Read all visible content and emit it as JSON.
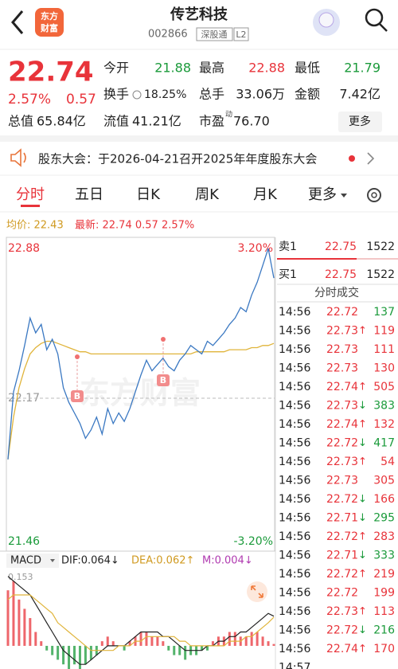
{
  "header": {
    "logo": [
      "东方",
      "财富"
    ],
    "title": "传艺科技",
    "code": "002866",
    "tags": [
      "深股通",
      "L2"
    ]
  },
  "quote": {
    "price": "22.74",
    "change_pct": "2.57%",
    "change": "0.57",
    "stats": [
      [
        {
          "label": "今开",
          "value": "21.88",
          "color": "#1a9a3a"
        },
        {
          "label": "最高",
          "value": "22.88",
          "color": "#e8333a"
        },
        {
          "label": "最低",
          "value": "21.79",
          "color": "#1a9a3a"
        }
      ],
      [
        {
          "label": "换手",
          "value": "18.25%"
        },
        {
          "label": "总手",
          "value": "33.06万"
        },
        {
          "label": "金额",
          "value": "7.42亿"
        }
      ],
      [
        {
          "label": "总值",
          "value": "65.84亿"
        },
        {
          "label": "流值",
          "value": "41.21亿"
        },
        {
          "label": "市盈",
          "sup": "动",
          "value": "76.70"
        }
      ]
    ],
    "more": "更多"
  },
  "notice": {
    "text": "股东大会：于2026-04-21召开2025年年度股东大会"
  },
  "tabs": [
    "分时",
    "五日",
    "日K",
    "周K",
    "月K",
    "更多"
  ],
  "legend": {
    "avg": "均价: 22.43",
    "latest": "最新: 22.74 0.57 2.57%"
  },
  "watermark": "东方财富",
  "trade_marks": [
    "B",
    "B"
  ],
  "order_book": {
    "ask": {
      "label": "卖1",
      "price": "22.75",
      "volume": "1522"
    },
    "bid": {
      "label": "买1",
      "price": "22.75",
      "volume": "1522"
    }
  },
  "trades": {
    "title": "分时成交",
    "rows": [
      {
        "time": "14:56",
        "price": "22.72",
        "volume": "137",
        "color": "#1a9a3a"
      },
      {
        "time": "14:56",
        "price": "22.73",
        "arrow": "↑",
        "volume": "119",
        "color": "#e8333a"
      },
      {
        "time": "14:56",
        "price": "22.73",
        "volume": "111",
        "color": "#e8333a"
      },
      {
        "time": "14:56",
        "price": "22.73",
        "volume": "130",
        "color": "#e8333a"
      },
      {
        "time": "14:56",
        "price": "22.74",
        "arrow": "↑",
        "volume": "505",
        "color": "#e8333a"
      },
      {
        "time": "14:56",
        "price": "22.73",
        "arrow": "↓",
        "volume": "383",
        "color": "#1a9a3a"
      },
      {
        "time": "14:56",
        "price": "22.74",
        "arrow": "↑",
        "volume": "132",
        "color": "#e8333a"
      },
      {
        "time": "14:56",
        "price": "22.72",
        "arrow": "↓",
        "volume": "417",
        "color": "#1a9a3a"
      },
      {
        "time": "14:56",
        "price": "22.73",
        "arrow": "↑",
        "volume": "54",
        "color": "#e8333a"
      },
      {
        "time": "14:56",
        "price": "22.73",
        "volume": "305",
        "color": "#e8333a"
      },
      {
        "time": "14:56",
        "price": "22.72",
        "arrow": "↓",
        "volume": "166",
        "color": "#e8333a"
      },
      {
        "time": "14:56",
        "price": "22.71",
        "arrow": "↓",
        "volume": "295",
        "color": "#1a9a3a"
      },
      {
        "time": "14:56",
        "price": "22.72",
        "arrow": "↑",
        "volume": "283",
        "color": "#e8333a"
      },
      {
        "time": "14:56",
        "price": "22.71",
        "arrow": "↓",
        "volume": "333",
        "color": "#1a9a3a"
      },
      {
        "time": "14:56",
        "price": "22.72",
        "arrow": "↑",
        "volume": "219",
        "color": "#e8333a"
      },
      {
        "time": "14:56",
        "price": "22.72",
        "volume": "199",
        "color": "#e8333a"
      },
      {
        "time": "14:56",
        "price": "22.73",
        "arrow": "↑",
        "volume": "113",
        "color": "#e8333a"
      },
      {
        "time": "14:56",
        "price": "22.72",
        "arrow": "↓",
        "volume": "216",
        "color": "#1a9a3a"
      },
      {
        "time": "14:56",
        "price": "22.74",
        "arrow": "↑",
        "volume": "170",
        "color": "#e8333a"
      },
      {
        "time": "14:57"
      }
    ]
  },
  "chart_data": [
    {
      "type": "line",
      "ylim": [
        21.46,
        22.88
      ],
      "yticks": [
        21.46,
        22.17,
        22.88
      ],
      "y2lim": [
        -3.2,
        3.2
      ],
      "y2ticks": [
        {
          "value": -3.2,
          "label": "-3.20%"
        },
        {
          "value": 3.2,
          "label": "3.20%"
        }
      ],
      "series": [
        {
          "color": "#3a78c2",
          "values": [
            21.88,
            22.2,
            22.3,
            22.42,
            22.55,
            22.48,
            22.52,
            22.4,
            22.45,
            22.38,
            22.22,
            22.15,
            22.1,
            22.05,
            21.98,
            22.02,
            22.08,
            22.0,
            22.12,
            22.05,
            22.1,
            22.06,
            22.12,
            22.2,
            22.28,
            22.35,
            22.3,
            22.33,
            22.36,
            22.32,
            22.3,
            22.35,
            22.38,
            22.42,
            22.4,
            22.38,
            22.44,
            22.42,
            22.45,
            22.48,
            22.52,
            22.55,
            22.6,
            22.58,
            22.66,
            22.72,
            22.8,
            22.88,
            22.74
          ]
        },
        {
          "color": "#e0b43a",
          "values": [
            21.88,
            22.08,
            22.22,
            22.31,
            22.38,
            22.41,
            22.43,
            22.44,
            22.44,
            22.43,
            22.42,
            22.41,
            22.4,
            22.39,
            22.39,
            22.38,
            22.38,
            22.38,
            22.38,
            22.38,
            22.38,
            22.38,
            22.38,
            22.38,
            22.38,
            22.38,
            22.38,
            22.38,
            22.38,
            22.38,
            22.38,
            22.38,
            22.38,
            22.38,
            22.39,
            22.39,
            22.39,
            22.39,
            22.39,
            22.39,
            22.4,
            22.4,
            22.4,
            22.4,
            22.41,
            22.41,
            22.42,
            22.42,
            22.43
          ]
        }
      ]
    },
    {
      "type": "macd",
      "title": "MACD",
      "dif_label": "DIF:0.064↓",
      "dea_label": "DEA:0.062↑",
      "m_label": "M:0.004↓",
      "ylim": [
        -0.05,
        0.153
      ],
      "yticks": [
        0.153
      ],
      "series": [
        {
          "color": "#222222",
          "values": [
            0.15,
            0.14,
            0.13,
            0.12,
            0.11,
            0.09,
            0.07,
            0.05,
            0.03,
            0.01,
            -0.01,
            -0.02,
            -0.03,
            -0.04,
            -0.04,
            -0.03,
            -0.02,
            -0.01,
            0.0,
            0.0,
            0.0,
            0.0,
            0.01,
            0.02,
            0.03,
            0.03,
            0.03,
            0.03,
            0.02,
            0.02,
            0.01,
            0.0,
            -0.01,
            -0.01,
            -0.01,
            -0.01,
            0.0,
            0.0,
            0.01,
            0.01,
            0.02,
            0.02,
            0.03,
            0.03,
            0.04,
            0.05,
            0.06,
            0.07,
            0.064
          ]
        },
        {
          "color": "#e0b43a",
          "values": [
            0.1,
            0.11,
            0.11,
            0.11,
            0.11,
            0.1,
            0.09,
            0.08,
            0.07,
            0.05,
            0.04,
            0.03,
            0.02,
            0.01,
            0.0,
            -0.01,
            -0.01,
            -0.01,
            -0.01,
            -0.01,
            0.0,
            0.0,
            0.0,
            0.01,
            0.01,
            0.02,
            0.02,
            0.02,
            0.02,
            0.02,
            0.02,
            0.01,
            0.01,
            0.0,
            0.0,
            0.0,
            0.0,
            0.0,
            0.0,
            0.0,
            0.01,
            0.01,
            0.01,
            0.02,
            0.02,
            0.03,
            0.04,
            0.05,
            0.062
          ]
        },
        {
          "color": "#e8333a",
          "values": [
            0.12,
            0.14,
            0.1,
            0.08,
            0.06,
            0.03,
            0.01,
            -0.01,
            -0.02,
            -0.03,
            -0.04,
            -0.05,
            -0.04,
            -0.05,
            -0.04,
            -0.03,
            -0.02,
            0.01,
            0.02,
            0.01,
            0.0,
            -0.01,
            0.01,
            0.02,
            0.03,
            0.03,
            0.02,
            0.02,
            0.01,
            -0.01,
            -0.02,
            -0.02,
            -0.03,
            -0.02,
            -0.02,
            -0.01,
            -0.01,
            0.01,
            0.02,
            0.02,
            0.03,
            0.03,
            0.02,
            0.02,
            0.03,
            0.03,
            0.02,
            0.01,
            0.004
          ]
        }
      ]
    }
  ]
}
